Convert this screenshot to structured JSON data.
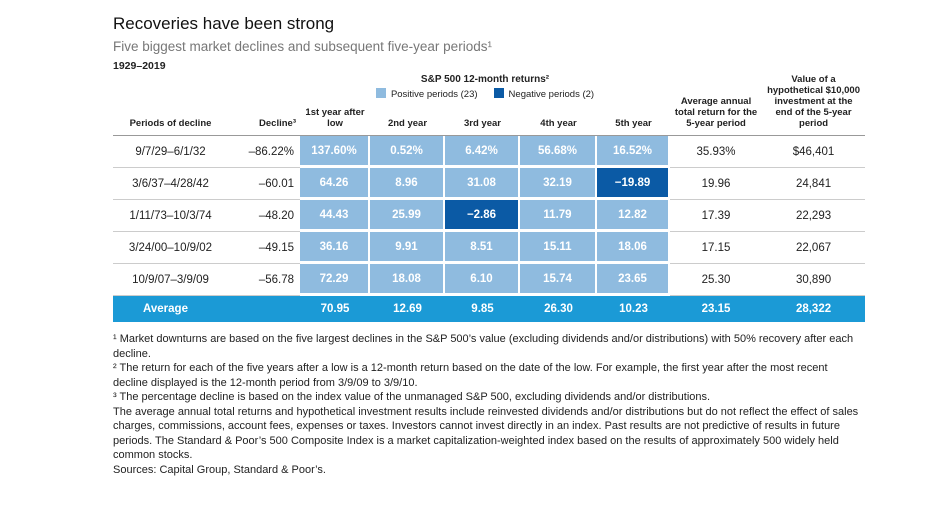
{
  "title": "Recoveries have been strong",
  "subtitle": "Five biggest market declines and subsequent five-year periods¹",
  "date_range": "1929–2019",
  "table": {
    "group_header": "S&P 500 12-month returns²",
    "legend": [
      {
        "label": "Positive periods (23)",
        "color": "#8fbbdf"
      },
      {
        "label": "Negative periods (2)",
        "color": "#0b5aa5"
      }
    ],
    "average_color": "#1b9ad6",
    "columns": [
      "Periods of decline",
      "Decline³",
      "1st year after low",
      "2nd year",
      "3rd year",
      "4th year",
      "5th year",
      "Average annual total return for the 5-year period",
      "Value of a hypothetical $10,000 investment at the end of the 5-year period"
    ],
    "rows": [
      [
        "9/7/29–6/1/32",
        "–86.22%",
        "137.60%",
        "0.52%",
        "6.42%",
        "56.68%",
        "16.52%",
        "35.93%",
        "$46,401"
      ],
      [
        "3/6/37–4/28/42",
        "–60.01",
        "64.26",
        "8.96",
        "31.08",
        "32.19",
        "−19.89",
        "19.96",
        "24,841"
      ],
      [
        "1/11/73–10/3/74",
        "–48.20",
        "44.43",
        "25.99",
        "−2.86",
        "11.79",
        "12.82",
        "17.39",
        "22,293"
      ],
      [
        "3/24/00–10/9/02",
        "–49.15",
        "36.16",
        "9.91",
        "8.51",
        "15.11",
        "18.06",
        "17.15",
        "22,067"
      ],
      [
        "10/9/07–3/9/09",
        "–56.78",
        "72.29",
        "18.08",
        "6.10",
        "15.74",
        "23.65",
        "25.30",
        "30,890"
      ]
    ],
    "average": {
      "label": "Average",
      "values": [
        "70.95",
        "12.69",
        "9.85",
        "26.30",
        "10.23",
        "23.15",
        "28,322"
      ]
    }
  },
  "footnotes": [
    "¹ Market downturns are based on the five largest declines in the S&P 500’s value (excluding dividends and/or distributions) with 50% recovery after each decline.",
    "² The return for each of the five years after a low is a 12-month return based on the date of the low. For example, the first year after the most recent decline displayed is the 12-month period from 3/9/09 to 3/9/10.",
    "³ The percentage decline is based on the index value of the unmanaged S&P 500, excluding dividends and/or distributions.",
    "The average annual total returns and hypothetical investment results include reinvested dividends and/or distributions but do not reflect the effect of sales charges, commissions, account fees, expenses or taxes. Investors cannot invest directly in an index. Past results are not predictive of results in future periods. The Standard & Poor’s 500 Composite Index is a market capitalization-weighted index based on the results of approximately 500 widely held common stocks.",
    "Sources: Capital Group, Standard & Poor’s."
  ]
}
